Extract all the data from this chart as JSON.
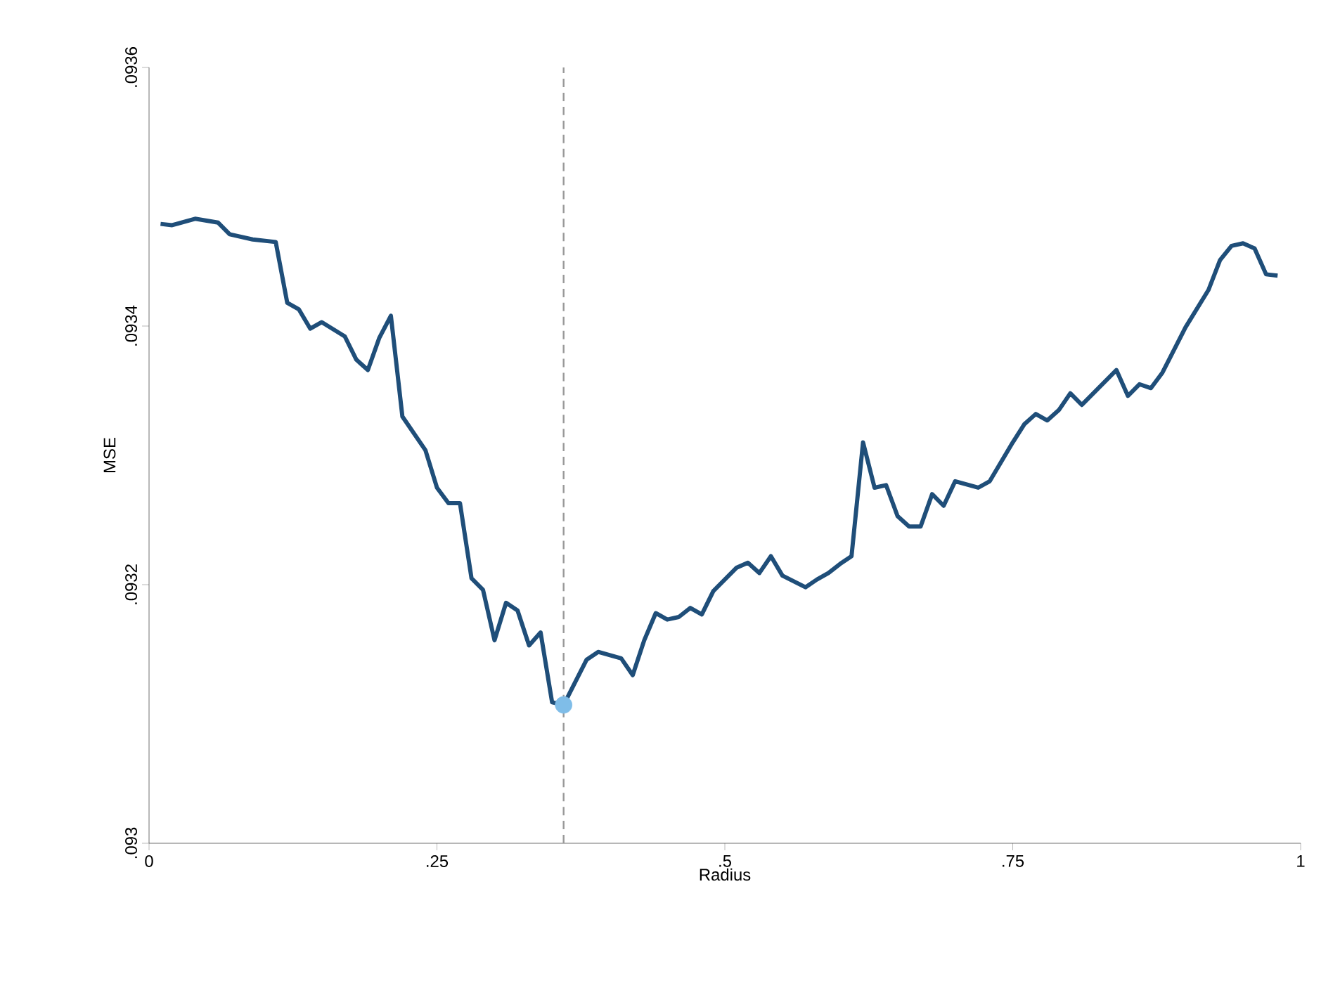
{
  "chart_data": {
    "type": "line",
    "xlabel": "Radius",
    "ylabel": "MSE",
    "xlim": [
      0,
      1
    ],
    "ylim": [
      0.093,
      0.0936
    ],
    "xticks": [
      0,
      {
        "value": 0.25,
        "label": ".25"
      },
      {
        "value": 0.5,
        "label": ".5"
      },
      {
        "value": 0.75,
        "label": ".75"
      },
      1
    ],
    "yticks": [
      {
        "value": 0.093,
        "label": ".093"
      },
      {
        "value": 0.0932,
        "label": ".0932"
      },
      {
        "value": 0.0934,
        "label": ".0934"
      },
      {
        "value": 0.0936,
        "label": ".0936"
      }
    ],
    "line_style": "solid",
    "ref_lines": [
      {
        "axis": "x",
        "value": 0.36,
        "color": "#999999",
        "line_style": "dashed"
      }
    ],
    "series": [
      {
        "color": "#1f4e79",
        "x": [
          0.01,
          0.02,
          0.04,
          0.06,
          0.07,
          0.09,
          0.11,
          0.12,
          0.13,
          0.14,
          0.15,
          0.17,
          0.18,
          0.19,
          0.2,
          0.21,
          0.22,
          0.24,
          0.25,
          0.26,
          0.27,
          0.28,
          0.29,
          0.3,
          0.31,
          0.32,
          0.33,
          0.34,
          0.35,
          0.36,
          0.38,
          0.39,
          0.41,
          0.42,
          0.43,
          0.44,
          0.45,
          0.46,
          0.47,
          0.48,
          0.49,
          0.51,
          0.52,
          0.53,
          0.54,
          0.55,
          0.57,
          0.58,
          0.59,
          0.6,
          0.61,
          0.62,
          0.63,
          0.64,
          0.65,
          0.66,
          0.67,
          0.68,
          0.69,
          0.7,
          0.72,
          0.73,
          0.75,
          0.76,
          0.77,
          0.78,
          0.79,
          0.8,
          0.81,
          0.84,
          0.85,
          0.86,
          0.87,
          0.88,
          0.9,
          0.92,
          0.93,
          0.94,
          0.95,
          0.96,
          0.97,
          0.98
        ],
        "values": [
          0.093479,
          0.093478,
          0.093483,
          0.09348,
          0.093471,
          0.093467,
          0.093465,
          0.093418,
          0.093413,
          0.093398,
          0.093403,
          0.093392,
          0.093374,
          0.093366,
          0.093391,
          0.093408,
          0.09333,
          0.093304,
          0.093275,
          0.093263,
          0.093263,
          0.093205,
          0.093196,
          0.093157,
          0.093186,
          0.09318,
          0.093153,
          0.093163,
          0.093109,
          0.093107,
          0.093142,
          0.093148,
          0.093143,
          0.09313,
          0.093157,
          0.093178,
          0.093173,
          0.093175,
          0.093182,
          0.093177,
          0.093195,
          0.093213,
          0.093217,
          0.093209,
          0.093222,
          0.093207,
          0.093198,
          0.093204,
          0.093209,
          0.093216,
          0.093222,
          0.09331,
          0.093275,
          0.093277,
          0.093253,
          0.093245,
          0.093245,
          0.09327,
          0.093261,
          0.09328,
          0.093275,
          0.09328,
          0.09331,
          0.093324,
          0.093332,
          0.093327,
          0.093335,
          0.093348,
          0.093339,
          0.093366,
          0.093346,
          0.093355,
          0.093352,
          0.093364,
          0.093399,
          0.093428,
          0.093451,
          0.093462,
          0.093464,
          0.09346,
          0.09344,
          0.093439
        ]
      },
      {
        "type": "scatter",
        "color": "#7fbde8",
        "x": [
          0.36
        ],
        "values": [
          0.093107
        ]
      }
    ]
  }
}
